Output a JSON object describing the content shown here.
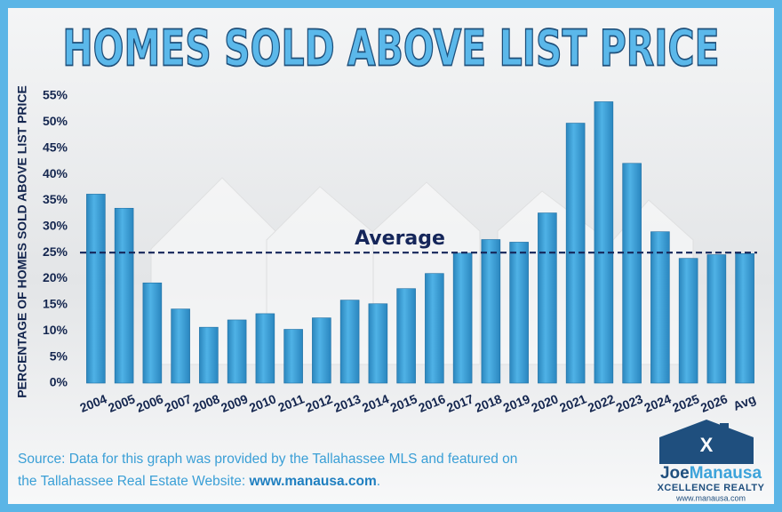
{
  "chart_data": {
    "type": "bar",
    "title": "HOMES SOLD ABOVE LIST PRICE",
    "y_label": "PERCENTAGE OF HOMES SOLD ABOVE LIST PRICE",
    "categories": [
      "2004",
      "2005",
      "2006",
      "2007",
      "2008",
      "2009",
      "2010",
      "2011",
      "2012",
      "2013",
      "2014",
      "2015",
      "2016",
      "2017",
      "2018",
      "2019",
      "2020",
      "2021",
      "2022",
      "2023",
      "2024",
      "2025",
      "2026",
      "Avg"
    ],
    "values": [
      36.2,
      33.5,
      19.2,
      14.2,
      10.7,
      12.1,
      13.3,
      10.3,
      12.5,
      15.9,
      15.2,
      18.1,
      21.0,
      24.9,
      27.5,
      27.0,
      32.6,
      49.8,
      53.9,
      42.1,
      29.0,
      23.9,
      24.6,
      24.8
    ],
    "color": "#3da3da",
    "ylim": [
      0,
      55
    ],
    "yticks": [
      {
        "value": 0,
        "label": "0%"
      },
      {
        "value": 5,
        "label": "5%"
      },
      {
        "value": 10,
        "label": "10%"
      },
      {
        "value": 15,
        "label": "15%"
      },
      {
        "value": 20,
        "label": "20%"
      },
      {
        "value": 25,
        "label": "25%"
      },
      {
        "value": 30,
        "label": "30%"
      },
      {
        "value": 35,
        "label": "35%"
      },
      {
        "value": 40,
        "label": "40%"
      },
      {
        "value": 45,
        "label": "45%"
      },
      {
        "value": 50,
        "label": "50%"
      },
      {
        "value": 55,
        "label": "55%"
      }
    ],
    "average": {
      "label": "Average",
      "value": 25
    }
  },
  "source": {
    "line1": "Source: Data for this graph was provided by the Tallahassee MLS and featured on",
    "line2": "the Tallahassee Real Estate Website: ",
    "link": "www.manausa.com",
    "end": "."
  },
  "logo": {
    "first": "Joe",
    "last": "Manausa",
    "tagline": "XCELLENCE REALTY",
    "url": "www.manausa.com"
  }
}
